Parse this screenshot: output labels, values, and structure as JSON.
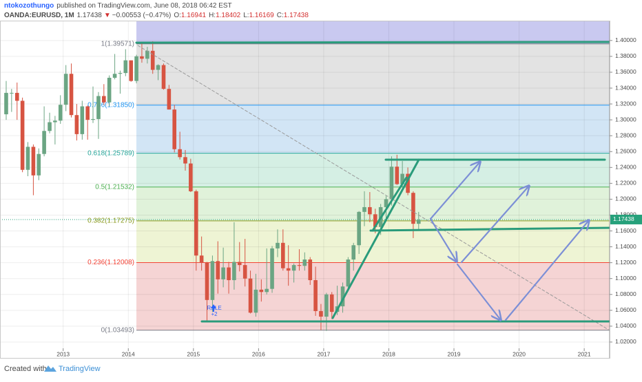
{
  "header": {
    "author": "ntokozothungo",
    "published": "published on TradingView.com, June 08, 2018 06:42 EST",
    "symbol": "OANDA:EURUSD, 1M",
    "last": "1.17438",
    "arrow": "▼",
    "change": "−0.00553 (−0.47%)",
    "o_label": "O:",
    "o": "1.16941",
    "h_label": "H:",
    "h": "1.18402",
    "l_label": "L:",
    "l": "1.16169",
    "c_label": "C:",
    "c": "1.17438"
  },
  "footer": {
    "created": "Created with",
    "brand": "TradingView"
  },
  "chart_data": {
    "type": "candlestick",
    "up_color": "#6ba583",
    "down_color": "#d75442",
    "x": [
      2012.125,
      2012.208,
      2012.292,
      2012.375,
      2012.458,
      2012.542,
      2012.625,
      2012.708,
      2012.792,
      2012.875,
      2012.958,
      2013.042,
      2013.125,
      2013.208,
      2013.292,
      2013.375,
      2013.458,
      2013.542,
      2013.625,
      2013.708,
      2013.792,
      2013.875,
      2013.958,
      2014.042,
      2014.125,
      2014.208,
      2014.292,
      2014.375,
      2014.458,
      2014.542,
      2014.625,
      2014.708,
      2014.792,
      2014.875,
      2014.958,
      2015.042,
      2015.125,
      2015.208,
      2015.292,
      2015.375,
      2015.458,
      2015.542,
      2015.625,
      2015.708,
      2015.792,
      2015.875,
      2015.958,
      2016.042,
      2016.125,
      2016.208,
      2016.292,
      2016.375,
      2016.458,
      2016.542,
      2016.625,
      2016.708,
      2016.792,
      2016.875,
      2016.958,
      2017.042,
      2017.125,
      2017.208,
      2017.292,
      2017.375,
      2017.458,
      2017.542,
      2017.625,
      2017.708,
      2017.792,
      2017.875,
      2017.958,
      2018.042,
      2018.125,
      2018.208,
      2018.292,
      2018.375,
      2018.458
    ],
    "open": [
      1.307,
      1.334,
      1.334,
      1.324,
      1.237,
      1.266,
      1.23,
      1.257,
      1.286,
      1.297,
      1.299,
      1.319,
      1.358,
      1.306,
      1.282,
      1.317,
      1.3,
      1.301,
      1.33,
      1.322,
      1.353,
      1.358,
      1.359,
      1.375,
      1.349,
      1.38,
      1.377,
      1.387,
      1.363,
      1.369,
      1.339,
      1.313,
      1.263,
      1.253,
      1.245,
      1.21,
      1.129,
      1.12,
      1.073,
      1.122,
      1.099,
      1.114,
      1.098,
      1.121,
      1.117,
      1.1,
      1.057,
      1.086,
      1.083,
      1.087,
      1.138,
      1.145,
      1.113,
      1.11,
      1.117,
      1.116,
      1.124,
      1.098,
      1.059,
      1.052,
      1.08,
      1.058,
      1.065,
      1.09,
      1.124,
      1.142,
      1.184,
      1.19,
      1.181,
      1.165,
      1.19,
      1.2,
      1.241,
      1.219,
      1.232,
      1.208,
      1.169
    ],
    "high": [
      1.349,
      1.339,
      1.347,
      1.328,
      1.272,
      1.269,
      1.264,
      1.317,
      1.309,
      1.305,
      1.331,
      1.369,
      1.371,
      1.32,
      1.324,
      1.318,
      1.342,
      1.335,
      1.345,
      1.356,
      1.383,
      1.362,
      1.389,
      1.374,
      1.382,
      1.397,
      1.392,
      1.399,
      1.37,
      1.371,
      1.344,
      1.319,
      1.285,
      1.262,
      1.251,
      1.212,
      1.153,
      1.121,
      1.129,
      1.147,
      1.139,
      1.121,
      1.171,
      1.146,
      1.15,
      1.11,
      1.106,
      1.099,
      1.138,
      1.141,
      1.162,
      1.162,
      1.142,
      1.119,
      1.137,
      1.133,
      1.127,
      1.115,
      1.068,
      1.082,
      1.083,
      1.091,
      1.095,
      1.127,
      1.145,
      1.185,
      1.21,
      1.209,
      1.188,
      1.194,
      1.204,
      1.254,
      1.256,
      1.248,
      1.24,
      1.21,
      1.184
    ],
    "low": [
      1.3,
      1.31,
      1.3,
      1.234,
      1.229,
      1.205,
      1.224,
      1.254,
      1.283,
      1.269,
      1.295,
      1.311,
      1.303,
      1.274,
      1.275,
      1.275,
      1.296,
      1.276,
      1.319,
      1.317,
      1.351,
      1.333,
      1.355,
      1.348,
      1.346,
      1.372,
      1.371,
      1.358,
      1.35,
      1.338,
      1.313,
      1.259,
      1.25,
      1.236,
      1.209,
      1.11,
      1.11,
      1.046,
      1.058,
      1.081,
      1.089,
      1.081,
      1.086,
      1.109,
      1.09,
      1.056,
      1.052,
      1.071,
      1.08,
      1.082,
      1.127,
      1.11,
      1.091,
      1.095,
      1.11,
      1.11,
      1.092,
      1.053,
      1.035,
      1.034,
      1.049,
      1.054,
      1.057,
      1.084,
      1.11,
      1.131,
      1.166,
      1.171,
      1.157,
      1.155,
      1.172,
      1.192,
      1.218,
      1.215,
      1.205,
      1.151,
      1.162
    ],
    "close": [
      1.334,
      1.334,
      1.324,
      1.237,
      1.266,
      1.23,
      1.257,
      1.286,
      1.297,
      1.299,
      1.319,
      1.358,
      1.306,
      1.282,
      1.317,
      1.3,
      1.301,
      1.33,
      1.322,
      1.353,
      1.358,
      1.359,
      1.375,
      1.349,
      1.38,
      1.377,
      1.387,
      1.363,
      1.369,
      1.339,
      1.313,
      1.263,
      1.253,
      1.245,
      1.21,
      1.129,
      1.12,
      1.073,
      1.122,
      1.099,
      1.114,
      1.098,
      1.121,
      1.117,
      1.1,
      1.057,
      1.086,
      1.083,
      1.087,
      1.138,
      1.145,
      1.113,
      1.11,
      1.117,
      1.116,
      1.124,
      1.098,
      1.059,
      1.052,
      1.08,
      1.058,
      1.065,
      1.09,
      1.124,
      1.142,
      1.184,
      1.19,
      1.181,
      1.165,
      1.19,
      1.2,
      1.241,
      1.219,
      1.232,
      1.208,
      1.169,
      1.174
    ],
    "xlim": [
      2012.03,
      2021.39
    ],
    "xticks": [
      2013,
      2014,
      2015,
      2016,
      2017,
      2018,
      2019,
      2020,
      2021
    ],
    "ylim": [
      1.0,
      1.425
    ],
    "yticks": [
      {
        "value": 1.02,
        "label": "1.02000"
      },
      {
        "value": 1.04,
        "label": "1.04000"
      },
      {
        "value": 1.06,
        "label": "1.06000"
      },
      {
        "value": 1.08,
        "label": "1.08000"
      },
      {
        "value": 1.1,
        "label": "1.10000"
      },
      {
        "value": 1.12,
        "label": "1.12000"
      },
      {
        "value": 1.14,
        "label": "1.14000"
      },
      {
        "value": 1.16,
        "label": "1.16000"
      },
      {
        "value": 1.18,
        "label": "1.18000"
      },
      {
        "value": 1.2,
        "label": "1.20000"
      },
      {
        "value": 1.22,
        "label": "1.22000"
      },
      {
        "value": 1.24,
        "label": "1.24000"
      },
      {
        "value": 1.26,
        "label": "1.26000"
      },
      {
        "value": 1.28,
        "label": "1.28000"
      },
      {
        "value": 1.3,
        "label": "1.30000"
      },
      {
        "value": 1.32,
        "label": "1.32000"
      },
      {
        "value": 1.34,
        "label": "1.34000"
      },
      {
        "value": 1.36,
        "label": "1.36000"
      },
      {
        "value": 1.38,
        "label": "1.38000"
      },
      {
        "value": 1.4,
        "label": "1.40000"
      }
    ],
    "grid": true,
    "fib_top_fill": "#c9c9f0",
    "fib_levels": [
      {
        "value": 1.39571,
        "label": "1(1.39571)",
        "color": "#787b86",
        "fill": "#e3e3e3"
      },
      {
        "value": 1.3185,
        "label": "0.786(1.31850)",
        "color": "#2196f3",
        "fill": "#d2e5f5"
      },
      {
        "value": 1.25789,
        "label": "0.618(1.25789)",
        "color": "#26a69a",
        "fill": "#d5efe4"
      },
      {
        "value": 1.21532,
        "label": "0.5(1.21532)",
        "color": "#4caf50",
        "fill": "#e0f2da"
      },
      {
        "value": 1.17275,
        "label": "0.382(1.17275)",
        "color": "#8a9a1e",
        "fill": "#eef4d4"
      },
      {
        "value": 1.12008,
        "label": "0.236(1.12008)",
        "color": "#f44336",
        "fill": "#f5d4d4"
      },
      {
        "value": 1.03493,
        "label": "0(1.03493)",
        "color": "#787b86"
      }
    ],
    "last_price": {
      "value": 1.17438,
      "label": "1.17438",
      "color": "#26a17b"
    },
    "annotations": [
      "RsiLE",
      "+2"
    ]
  }
}
